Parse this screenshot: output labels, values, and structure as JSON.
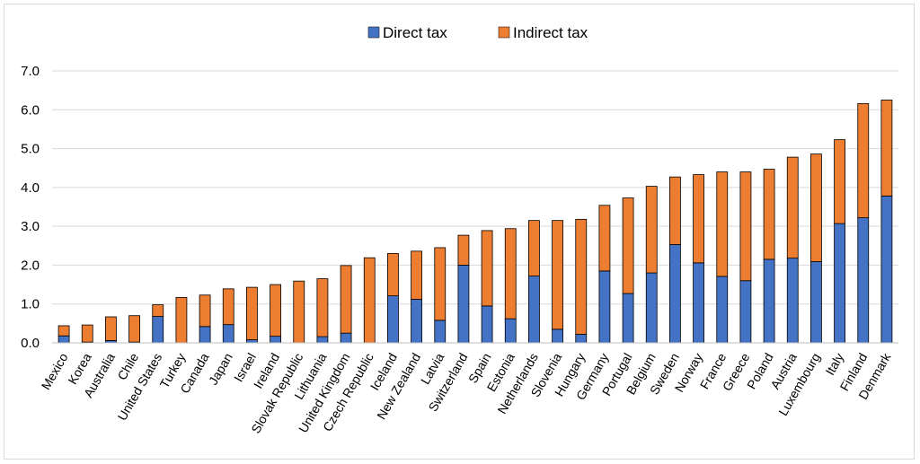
{
  "chart_data": {
    "type": "bar",
    "stacked": true,
    "categories": [
      "Mexico",
      "Korea",
      "Australia",
      "Chile",
      "United States",
      "Turkey",
      "Canada",
      "Japan",
      "Israel",
      "Ireland",
      "Slovak Republic",
      "Lithuania",
      "United Kingdom",
      "Czech Republic",
      "Iceland",
      "New Zealand",
      "Latvia",
      "Switzerland",
      "Spain",
      "Estonia",
      "Netherlands",
      "Slovenia",
      "Hungary",
      "Germany",
      "Portugal",
      "Belgium",
      "Sweden",
      "Norway",
      "France",
      "Greece",
      "Poland",
      "Austria",
      "Luxembourg",
      "Italy",
      "Finland",
      "Denmark"
    ],
    "series": [
      {
        "name": "Direct tax",
        "color": "#4472c4",
        "values": [
          0.18,
          0.02,
          0.06,
          0.02,
          0.68,
          0.0,
          0.42,
          0.47,
          0.08,
          0.17,
          0.0,
          0.16,
          0.25,
          0.0,
          1.21,
          1.12,
          0.58,
          2.0,
          0.95,
          0.62,
          1.72,
          0.35,
          0.22,
          1.85,
          1.27,
          1.8,
          2.53,
          2.06,
          1.71,
          1.6,
          2.15,
          2.18,
          2.09,
          3.07,
          3.22,
          3.78
        ]
      },
      {
        "name": "Indirect tax",
        "color": "#ed7d31",
        "values": [
          0.26,
          0.44,
          0.61,
          0.68,
          0.3,
          1.17,
          0.81,
          0.92,
          1.35,
          1.33,
          1.59,
          1.49,
          1.74,
          2.19,
          1.09,
          1.24,
          1.87,
          0.77,
          1.94,
          2.32,
          1.43,
          2.8,
          2.96,
          1.69,
          2.46,
          2.23,
          1.74,
          2.27,
          2.69,
          2.8,
          2.32,
          2.6,
          2.77,
          2.16,
          2.94,
          2.47
        ]
      }
    ],
    "yticks": [
      "0.0",
      "1.0",
      "2.0",
      "3.0",
      "4.0",
      "5.0",
      "6.0",
      "7.0"
    ],
    "ylim": [
      0,
      7
    ],
    "title": "",
    "xlabel": "",
    "ylabel": "",
    "grid": true,
    "legend_position": "top-center"
  }
}
